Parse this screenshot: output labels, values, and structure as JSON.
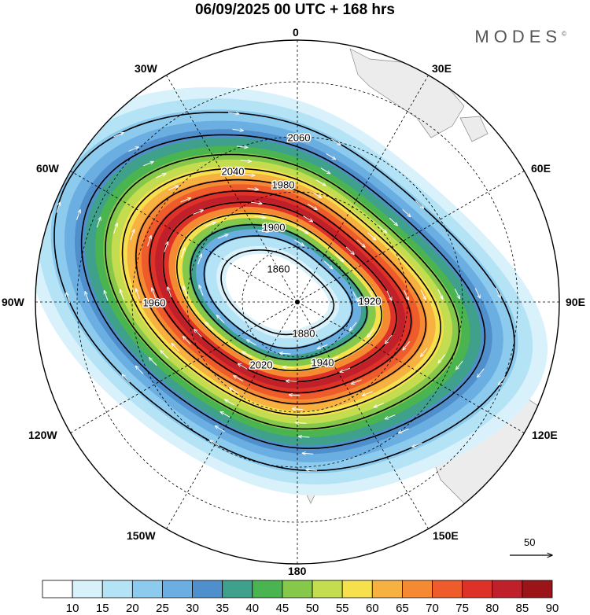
{
  "header": {
    "title": "06/09/2025  00 UTC  + 168 hrs",
    "brand": "MODES",
    "brand_mark": "©"
  },
  "map": {
    "projection": "polar stereographic, south pole centered",
    "longitude_labels": [
      "0",
      "30E",
      "60E",
      "90E",
      "120E",
      "150E",
      "180",
      "150W",
      "120W",
      "90W",
      "60W",
      "30W"
    ],
    "contour_labels": [
      "2060",
      "2040",
      "2020",
      "1980",
      "1960",
      "1940",
      "1920",
      "1900",
      "1880",
      "1860"
    ],
    "contour_levels": [
      1860,
      1880,
      1900,
      1920,
      1940,
      1960,
      1980,
      2000,
      2020,
      2040,
      2060
    ],
    "reference_vector": "50"
  },
  "colorbar": {
    "labels": [
      "10",
      "15",
      "20",
      "25",
      "30",
      "35",
      "40",
      "45",
      "50",
      "55",
      "60",
      "65",
      "70",
      "75",
      "80",
      "85",
      "90"
    ],
    "colors": [
      "#ffffff",
      "#d8f1fb",
      "#b4e3f6",
      "#8ccbee",
      "#6aaee2",
      "#4f8fcc",
      "#3fa08c",
      "#4ab451",
      "#86c94a",
      "#c4dc4f",
      "#f6e04e",
      "#f7b140",
      "#f58a32",
      "#ee5c2c",
      "#de3128",
      "#c0202a",
      "#9a1418"
    ]
  }
}
